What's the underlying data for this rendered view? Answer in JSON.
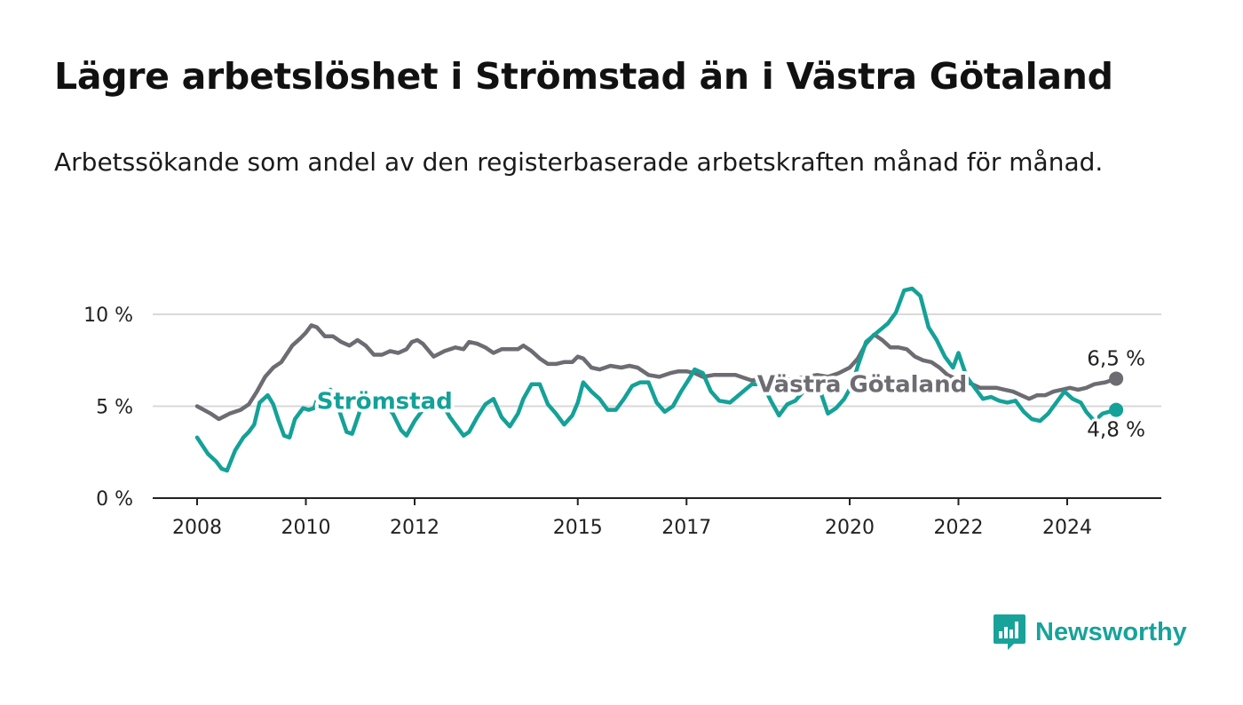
{
  "header": {
    "title": "Lägre arbetslöshet i Strömstad än i Västra Götaland",
    "subtitle": "Arbetssökande som andel av den registerbaserade arbetskraften månad för månad."
  },
  "brand": {
    "name": "Newsworthy",
    "icon": "newsworthy-logo-icon"
  },
  "colors": {
    "stromstad": "#14a198",
    "vastra_gotaland": "#6c6c72",
    "grid": "#d9d9d9",
    "axis": "#222222"
  },
  "chart_data": {
    "type": "line",
    "xlabel": "",
    "ylabel": "",
    "xlim": [
      2008,
      2025
    ],
    "ylim": [
      0,
      11
    ],
    "x_ticks": [
      {
        "value": 2008,
        "label": "2008"
      },
      {
        "value": 2010,
        "label": "2010"
      },
      {
        "value": 2012,
        "label": "2012"
      },
      {
        "value": 2015,
        "label": "2015"
      },
      {
        "value": 2017,
        "label": "2017"
      },
      {
        "value": 2020,
        "label": "2020"
      },
      {
        "value": 2022,
        "label": "2022"
      },
      {
        "value": 2024,
        "label": "2024"
      }
    ],
    "y_ticks": [
      {
        "value": 0,
        "label": "0 %"
      },
      {
        "value": 5,
        "label": "5 %"
      },
      {
        "value": 10,
        "label": "10 %"
      }
    ],
    "grid": true,
    "series": [
      {
        "name": "Västra Götaland",
        "color": "#6c6c72",
        "end_label": "6,5 %",
        "points": [
          [
            2008.0,
            5.0
          ],
          [
            2008.25,
            4.6
          ],
          [
            2008.4,
            4.3
          ],
          [
            2008.6,
            4.6
          ],
          [
            2008.8,
            4.8
          ],
          [
            2008.95,
            5.1
          ],
          [
            2009.1,
            5.8
          ],
          [
            2009.25,
            6.6
          ],
          [
            2009.4,
            7.1
          ],
          [
            2009.55,
            7.4
          ],
          [
            2009.75,
            8.3
          ],
          [
            2009.9,
            8.7
          ],
          [
            2010.0,
            9.0
          ],
          [
            2010.1,
            9.4
          ],
          [
            2010.2,
            9.3
          ],
          [
            2010.35,
            8.8
          ],
          [
            2010.5,
            8.8
          ],
          [
            2010.65,
            8.5
          ],
          [
            2010.8,
            8.3
          ],
          [
            2010.95,
            8.6
          ],
          [
            2011.1,
            8.3
          ],
          [
            2011.25,
            7.8
          ],
          [
            2011.4,
            7.8
          ],
          [
            2011.55,
            8.0
          ],
          [
            2011.7,
            7.9
          ],
          [
            2011.85,
            8.1
          ],
          [
            2011.95,
            8.5
          ],
          [
            2012.05,
            8.6
          ],
          [
            2012.15,
            8.4
          ],
          [
            2012.35,
            7.7
          ],
          [
            2012.55,
            8.0
          ],
          [
            2012.75,
            8.2
          ],
          [
            2012.9,
            8.1
          ],
          [
            2013.0,
            8.5
          ],
          [
            2013.15,
            8.4
          ],
          [
            2013.3,
            8.2
          ],
          [
            2013.45,
            7.9
          ],
          [
            2013.6,
            8.1
          ],
          [
            2013.75,
            8.1
          ],
          [
            2013.9,
            8.1
          ],
          [
            2014.0,
            8.3
          ],
          [
            2014.15,
            8.0
          ],
          [
            2014.3,
            7.6
          ],
          [
            2014.45,
            7.3
          ],
          [
            2014.6,
            7.3
          ],
          [
            2014.75,
            7.4
          ],
          [
            2014.9,
            7.4
          ],
          [
            2015.0,
            7.7
          ],
          [
            2015.1,
            7.6
          ],
          [
            2015.25,
            7.1
          ],
          [
            2015.4,
            7.0
          ],
          [
            2015.6,
            7.2
          ],
          [
            2015.8,
            7.1
          ],
          [
            2015.95,
            7.2
          ],
          [
            2016.1,
            7.1
          ],
          [
            2016.3,
            6.7
          ],
          [
            2016.5,
            6.6
          ],
          [
            2016.7,
            6.8
          ],
          [
            2016.85,
            6.9
          ],
          [
            2017.0,
            6.9
          ],
          [
            2017.15,
            6.8
          ],
          [
            2017.3,
            6.6
          ],
          [
            2017.5,
            6.7
          ],
          [
            2017.7,
            6.7
          ],
          [
            2017.9,
            6.7
          ],
          [
            2018.0,
            6.6
          ],
          [
            2018.2,
            6.4
          ],
          [
            2018.4,
            6.5
          ],
          [
            2018.6,
            6.5
          ],
          [
            2018.8,
            6.4
          ],
          [
            2019.0,
            6.5
          ],
          [
            2019.2,
            6.6
          ],
          [
            2019.4,
            6.7
          ],
          [
            2019.6,
            6.6
          ],
          [
            2019.8,
            6.8
          ],
          [
            2020.0,
            7.1
          ],
          [
            2020.15,
            7.6
          ],
          [
            2020.3,
            8.4
          ],
          [
            2020.45,
            8.9
          ],
          [
            2020.6,
            8.6
          ],
          [
            2020.75,
            8.2
          ],
          [
            2020.9,
            8.2
          ],
          [
            2021.05,
            8.1
          ],
          [
            2021.2,
            7.7
          ],
          [
            2021.35,
            7.5
          ],
          [
            2021.5,
            7.4
          ],
          [
            2021.65,
            7.1
          ],
          [
            2021.8,
            6.7
          ],
          [
            2021.95,
            6.5
          ],
          [
            2022.1,
            6.4
          ],
          [
            2022.25,
            6.2
          ],
          [
            2022.4,
            6.0
          ],
          [
            2022.55,
            6.0
          ],
          [
            2022.7,
            6.0
          ],
          [
            2022.85,
            5.9
          ],
          [
            2023.0,
            5.8
          ],
          [
            2023.15,
            5.6
          ],
          [
            2023.3,
            5.4
          ],
          [
            2023.45,
            5.6
          ],
          [
            2023.6,
            5.6
          ],
          [
            2023.75,
            5.8
          ],
          [
            2023.9,
            5.9
          ],
          [
            2024.05,
            6.0
          ],
          [
            2024.2,
            5.9
          ],
          [
            2024.35,
            6.0
          ],
          [
            2024.5,
            6.2
          ],
          [
            2024.7,
            6.3
          ],
          [
            2024.9,
            6.5
          ]
        ]
      },
      {
        "name": "Strömstad",
        "color": "#14a198",
        "end_label": "4,8 %",
        "points": [
          [
            2008.0,
            3.3
          ],
          [
            2008.2,
            2.4
          ],
          [
            2008.35,
            2.0
          ],
          [
            2008.45,
            1.6
          ],
          [
            2008.55,
            1.5
          ],
          [
            2008.7,
            2.6
          ],
          [
            2008.85,
            3.3
          ],
          [
            2008.95,
            3.6
          ],
          [
            2009.05,
            4.0
          ],
          [
            2009.15,
            5.2
          ],
          [
            2009.3,
            5.6
          ],
          [
            2009.4,
            5.1
          ],
          [
            2009.5,
            4.2
          ],
          [
            2009.6,
            3.4
          ],
          [
            2009.7,
            3.3
          ],
          [
            2009.8,
            4.3
          ],
          [
            2009.95,
            4.9
          ],
          [
            2010.05,
            4.8
          ],
          [
            2010.15,
            4.9
          ],
          [
            2010.25,
            5.7
          ],
          [
            2010.35,
            5.6
          ],
          [
            2010.45,
            5.9
          ],
          [
            2010.6,
            4.9
          ],
          [
            2010.75,
            3.6
          ],
          [
            2010.85,
            3.5
          ],
          [
            2011.0,
            4.8
          ],
          [
            2011.15,
            5.2
          ],
          [
            2011.3,
            5.4
          ],
          [
            2011.45,
            5.1
          ],
          [
            2011.6,
            4.6
          ],
          [
            2011.75,
            3.7
          ],
          [
            2011.85,
            3.4
          ],
          [
            2012.0,
            4.2
          ],
          [
            2012.15,
            4.8
          ],
          [
            2012.25,
            4.8
          ],
          [
            2012.35,
            5.3
          ],
          [
            2012.5,
            5.2
          ],
          [
            2012.65,
            4.4
          ],
          [
            2012.8,
            3.8
          ],
          [
            2012.9,
            3.4
          ],
          [
            2013.0,
            3.6
          ],
          [
            2013.15,
            4.4
          ],
          [
            2013.3,
            5.1
          ],
          [
            2013.45,
            5.4
          ],
          [
            2013.6,
            4.4
          ],
          [
            2013.75,
            3.9
          ],
          [
            2013.9,
            4.6
          ],
          [
            2014.0,
            5.4
          ],
          [
            2014.15,
            6.2
          ],
          [
            2014.3,
            6.2
          ],
          [
            2014.45,
            5.1
          ],
          [
            2014.6,
            4.6
          ],
          [
            2014.75,
            4.0
          ],
          [
            2014.9,
            4.5
          ],
          [
            2015.0,
            5.2
          ],
          [
            2015.1,
            6.3
          ],
          [
            2015.25,
            5.8
          ],
          [
            2015.4,
            5.4
          ],
          [
            2015.55,
            4.8
          ],
          [
            2015.7,
            4.8
          ],
          [
            2015.85,
            5.4
          ],
          [
            2016.0,
            6.1
          ],
          [
            2016.15,
            6.3
          ],
          [
            2016.3,
            6.3
          ],
          [
            2016.45,
            5.2
          ],
          [
            2016.6,
            4.7
          ],
          [
            2016.75,
            5.0
          ],
          [
            2016.9,
            5.8
          ],
          [
            2017.05,
            6.5
          ],
          [
            2017.15,
            7.0
          ],
          [
            2017.3,
            6.8
          ],
          [
            2017.45,
            5.8
          ],
          [
            2017.6,
            5.3
          ],
          [
            2017.8,
            5.2
          ],
          [
            2018.0,
            5.7
          ],
          [
            2018.2,
            6.2
          ],
          [
            2018.4,
            6.2
          ],
          [
            2018.55,
            5.3
          ],
          [
            2018.7,
            4.5
          ],
          [
            2018.85,
            5.1
          ],
          [
            2019.0,
            5.3
          ],
          [
            2019.15,
            5.8
          ],
          [
            2019.3,
            6.2
          ],
          [
            2019.45,
            5.9
          ],
          [
            2019.6,
            4.6
          ],
          [
            2019.75,
            4.9
          ],
          [
            2019.9,
            5.4
          ],
          [
            2020.05,
            6.2
          ],
          [
            2020.15,
            7.2
          ],
          [
            2020.3,
            8.5
          ],
          [
            2020.5,
            9.0
          ],
          [
            2020.7,
            9.5
          ],
          [
            2020.85,
            10.1
          ],
          [
            2021.0,
            11.3
          ],
          [
            2021.15,
            11.4
          ],
          [
            2021.3,
            11.0
          ],
          [
            2021.45,
            9.3
          ],
          [
            2021.6,
            8.6
          ],
          [
            2021.75,
            7.7
          ],
          [
            2021.9,
            7.1
          ],
          [
            2022.0,
            7.9
          ],
          [
            2022.15,
            6.6
          ],
          [
            2022.3,
            6.0
          ],
          [
            2022.45,
            5.4
          ],
          [
            2022.6,
            5.5
          ],
          [
            2022.75,
            5.3
          ],
          [
            2022.9,
            5.2
          ],
          [
            2023.05,
            5.3
          ],
          [
            2023.2,
            4.7
          ],
          [
            2023.35,
            4.3
          ],
          [
            2023.5,
            4.2
          ],
          [
            2023.65,
            4.6
          ],
          [
            2023.8,
            5.2
          ],
          [
            2023.95,
            5.8
          ],
          [
            2024.1,
            5.4
          ],
          [
            2024.25,
            5.2
          ],
          [
            2024.35,
            4.7
          ],
          [
            2024.5,
            4.2
          ],
          [
            2024.65,
            4.6
          ],
          [
            2024.9,
            4.8
          ]
        ]
      }
    ],
    "annotations": [
      {
        "text": "Strömstad",
        "series": "Strömstad",
        "x": 2010.2,
        "y": 5.3
      },
      {
        "text": "Västra Götaland",
        "series": "Västra Götaland",
        "x": 2018.3,
        "y": 6.2
      }
    ]
  }
}
